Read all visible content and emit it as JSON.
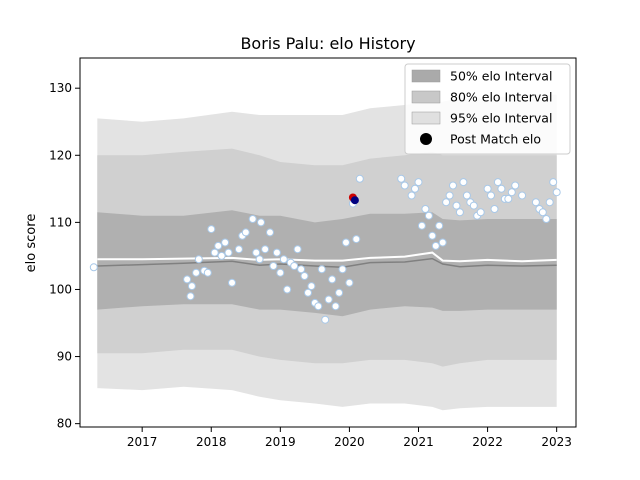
{
  "chart_data": {
    "type": "area",
    "title": "Boris Palu: elo History",
    "xlabel": "",
    "ylabel": "elo score",
    "xlim": [
      2016.1,
      2023.28
    ],
    "ylim": [
      79.5,
      134.5
    ],
    "xticks": [
      2017,
      2018,
      2019,
      2020,
      2021,
      2022,
      2023
    ],
    "yticks": [
      80,
      90,
      100,
      110,
      120,
      130
    ],
    "grid": false,
    "legend_position": "top-right",
    "legend": [
      {
        "label": "50% elo Interval",
        "color": "#aaaaaa"
      },
      {
        "label": "80% elo Interval",
        "color": "#c8c8c8"
      },
      {
        "label": "95% elo Interval",
        "color": "#e0e0e0"
      },
      {
        "label": "Post Match elo",
        "color": "#000000"
      }
    ],
    "bands": {
      "x": [
        2016.35,
        2017.0,
        2017.6,
        2018.3,
        2018.7,
        2019.0,
        2019.5,
        2019.9,
        2020.3,
        2020.8,
        2021.2,
        2021.35,
        2021.6,
        2022.0,
        2022.5,
        2023.0
      ],
      "mean": [
        103.5,
        103.7,
        103.9,
        104.2,
        103.6,
        103.8,
        103.5,
        103.3,
        104.0,
        104.1,
        104.6,
        103.8,
        103.4,
        103.6,
        103.5,
        103.6
      ],
      "p50_low": [
        97.0,
        97.5,
        97.8,
        97.8,
        97.0,
        97.0,
        96.5,
        96.0,
        97.0,
        97.5,
        97.3,
        96.8,
        96.8,
        97.0,
        97.0,
        97.0
      ],
      "p50_high": [
        111.5,
        111.0,
        111.0,
        111.8,
        111.0,
        111.0,
        110.0,
        110.5,
        111.3,
        111.3,
        111.5,
        110.5,
        110.3,
        110.5,
        110.5,
        110.5
      ],
      "p80_low": [
        90.5,
        90.5,
        91.0,
        91.0,
        90.0,
        89.5,
        89.0,
        89.0,
        89.5,
        89.5,
        89.0,
        88.5,
        89.0,
        89.5,
        89.5,
        89.5
      ],
      "p80_high": [
        120.0,
        120.0,
        120.5,
        121.0,
        120.0,
        119.0,
        118.5,
        118.5,
        119.5,
        120.0,
        120.5,
        120.0,
        120.0,
        120.0,
        120.0,
        120.0
      ],
      "p95_low": [
        85.3,
        85.0,
        85.5,
        85.0,
        84.0,
        83.5,
        83.0,
        82.5,
        83.0,
        83.0,
        82.5,
        82.0,
        82.3,
        82.5,
        82.5,
        82.5
      ],
      "p95_high": [
        125.5,
        125.0,
        125.5,
        126.5,
        126.0,
        126.0,
        126.0,
        126.0,
        127.0,
        127.5,
        128.0,
        128.0,
        128.5,
        128.5,
        129.0,
        129.0
      ],
      "upper_line": [
        104.5,
        104.5,
        104.6,
        104.7,
        104.4,
        104.5,
        104.3,
        104.3,
        104.7,
        104.9,
        105.5,
        104.3,
        104.2,
        104.4,
        104.2,
        104.4
      ]
    },
    "post_match_elo": {
      "x": [
        2016.3,
        2017.65,
        2017.7,
        2017.72,
        2017.78,
        2017.82,
        2017.9,
        2018.0,
        2018.05,
        2017.95,
        2018.1,
        2018.15,
        2018.2,
        2018.25,
        2018.3,
        2018.4,
        2018.45,
        2018.5,
        2018.6,
        2018.65,
        2018.7,
        2018.72,
        2018.78,
        2018.85,
        2018.9,
        2018.95,
        2019.0,
        2019.05,
        2019.1,
        2019.15,
        2019.2,
        2019.25,
        2019.3,
        2019.35,
        2019.4,
        2019.45,
        2019.5,
        2019.55,
        2019.6,
        2019.65,
        2019.7,
        2019.75,
        2019.8,
        2019.85,
        2019.9,
        2019.95,
        2020.0,
        2020.05,
        2020.1,
        2020.15,
        2020.75,
        2020.8,
        2020.9,
        2020.95,
        2021.0,
        2021.05,
        2021.1,
        2021.15,
        2021.2,
        2021.25,
        2021.3,
        2021.35,
        2021.4,
        2021.45,
        2021.5,
        2021.55,
        2021.6,
        2021.65,
        2021.7,
        2021.75,
        2021.8,
        2021.85,
        2021.9,
        2022.0,
        2022.05,
        2022.1,
        2022.15,
        2022.2,
        2022.25,
        2022.3,
        2022.35,
        2022.4,
        2022.5,
        2022.7,
        2022.75,
        2022.8,
        2022.85,
        2022.9,
        2022.95,
        2023.0
      ],
      "y": [
        103.3,
        101.5,
        99.0,
        100.5,
        102.5,
        104.5,
        102.8,
        109.0,
        105.5,
        102.5,
        106.5,
        105.0,
        107.0,
        105.5,
        101.0,
        106.0,
        108.0,
        108.5,
        110.5,
        105.5,
        104.5,
        110.0,
        106.0,
        108.5,
        103.5,
        105.5,
        102.5,
        104.5,
        100.0,
        104.0,
        103.5,
        106.0,
        103.0,
        102.0,
        99.5,
        100.5,
        98.0,
        97.5,
        103.0,
        95.5,
        98.5,
        101.5,
        97.5,
        99.5,
        103.0,
        107.0,
        101.0,
        112.8,
        107.5,
        116.5,
        116.5,
        115.5,
        114.0,
        115.0,
        116.0,
        109.5,
        112.0,
        111.0,
        108.0,
        106.5,
        109.5,
        107.0,
        113.0,
        114.0,
        115.5,
        112.5,
        111.5,
        116.0,
        114.0,
        113.0,
        112.5,
        111.0,
        111.5,
        115.0,
        114.0,
        112.0,
        116.0,
        115.0,
        113.5,
        113.5,
        114.5,
        115.5,
        114.0,
        113.0,
        112.0,
        111.5,
        110.5,
        113.0,
        116.0,
        114.5
      ]
    },
    "highlight_points": [
      {
        "x": 2020.05,
        "y": 113.7,
        "color": "#cc0000"
      },
      {
        "x": 2020.08,
        "y": 113.3,
        "color": "#000080"
      }
    ]
  }
}
